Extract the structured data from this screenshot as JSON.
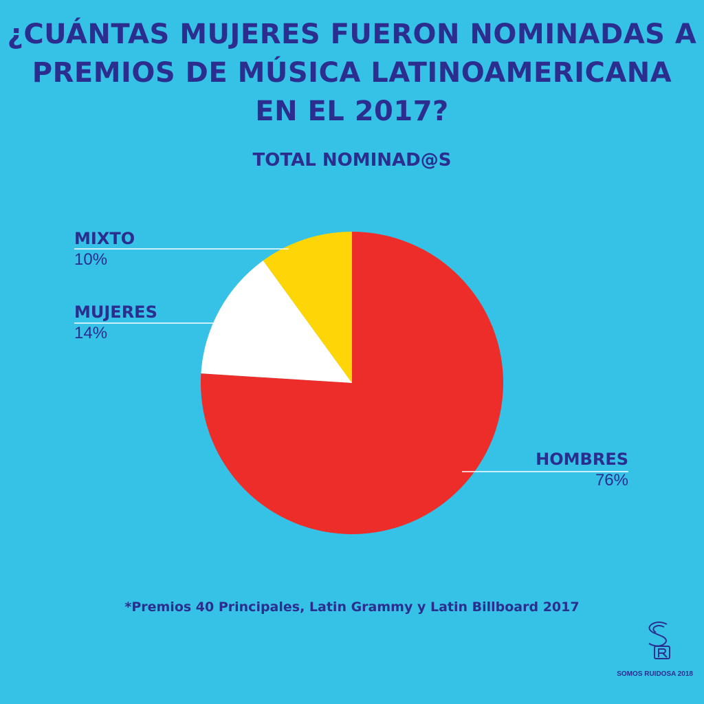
{
  "title_lines": [
    "¿CUÁNTAS MUJERES FUERON NOMINADAS A",
    "PREMIOS DE MÚSICA LATINOAMERICANA",
    "EN EL 2017?"
  ],
  "footnote": "*Premios 40 Principales, Latin Grammy y Latin Billboard 2017",
  "credit": "SOMOS RUIDOSA 2018",
  "logo_text": "SR",
  "colors": {
    "background": "#35c2e6",
    "text": "#2b2e8f",
    "hombres": "#ec2d2a",
    "mujeres": "#ffffff",
    "mixto": "#fed507"
  },
  "chart_data": {
    "type": "pie",
    "title": "TOTAL NOMINAD@S",
    "slices": [
      {
        "label": "HOMBRES",
        "value": 76,
        "display": "76%",
        "color": "#ec2d2a"
      },
      {
        "label": "MUJERES",
        "value": 14,
        "display": "14%",
        "color": "#ffffff"
      },
      {
        "label": "MIXTO",
        "value": 10,
        "display": "10%",
        "color": "#fed507"
      }
    ]
  }
}
